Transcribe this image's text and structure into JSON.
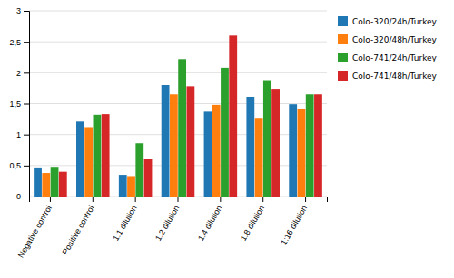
{
  "chart_data": {
    "type": "bar",
    "categories": [
      "Negative control",
      "Positive control",
      "1:1 dilution",
      "1:2 dilution",
      "1:4 dilution",
      "1:8 dilution",
      "1:16 dilution"
    ],
    "series": [
      {
        "name": "Colo-320/24h/Turkey",
        "values": [
          0.47,
          1.21,
          0.35,
          1.8,
          1.37,
          1.61,
          1.49
        ]
      },
      {
        "name": "Colo-320/48h/Turkey",
        "values": [
          0.38,
          1.12,
          0.33,
          1.65,
          1.48,
          1.27,
          1.42
        ]
      },
      {
        "name": "Colo-741/24h/Turkey",
        "values": [
          0.48,
          1.32,
          0.86,
          2.22,
          2.08,
          1.88,
          1.65
        ]
      },
      {
        "name": "Colo-741/48h/Turkey",
        "values": [
          0.4,
          1.33,
          0.6,
          1.78,
          2.6,
          1.74,
          1.65
        ]
      }
    ],
    "ylim": [
      0,
      3
    ],
    "yticks": [
      0,
      {
        "value": 0.5,
        "label": "0,5"
      },
      1,
      {
        "value": 1.5,
        "label": "1,5"
      },
      2,
      {
        "value": 2.5,
        "label": "2,5"
      },
      3
    ],
    "grid": true,
    "legend": "right"
  }
}
